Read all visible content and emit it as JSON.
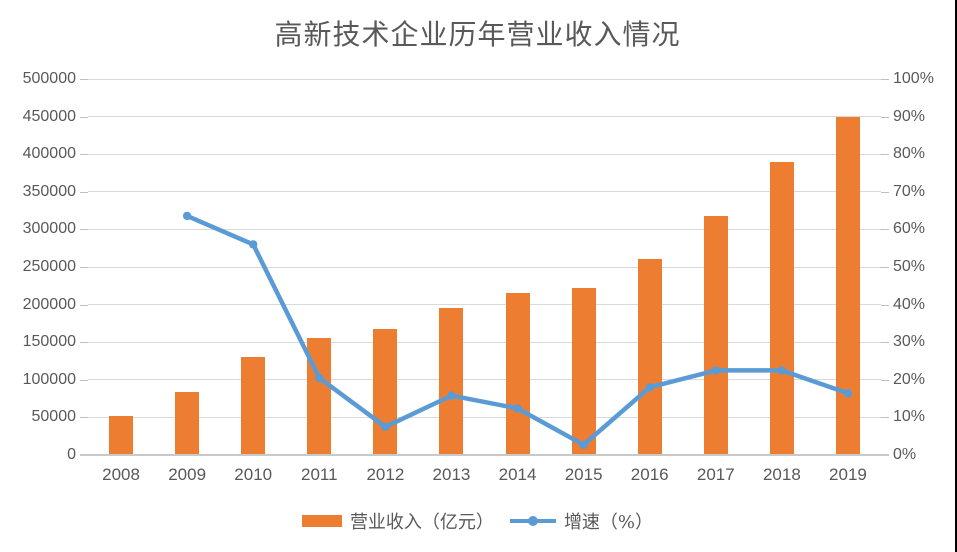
{
  "page": {
    "background": "#ffffff",
    "right_edge_line_color": "#000000"
  },
  "chart_data": {
    "type": "bar",
    "subtype": "combo-bar-line",
    "title": "高新技术企业历年营业收入情况",
    "categories": [
      "2008",
      "2009",
      "2010",
      "2011",
      "2012",
      "2013",
      "2014",
      "2015",
      "2016",
      "2017",
      "2018",
      "2019"
    ],
    "series": [
      {
        "name": "营业收入（亿元）",
        "type": "bar",
        "axis": "left",
        "color": "#ED7D31",
        "values": [
          52000,
          84000,
          130000,
          156000,
          167000,
          195000,
          216000,
          222000,
          261000,
          318000,
          389000,
          450000
        ]
      },
      {
        "name": "增速（%）",
        "type": "line",
        "axis": "right",
        "color": "#5B9BD5",
        "values": [
          null,
          63.6,
          56.0,
          20.5,
          7.5,
          15.8,
          12.4,
          2.7,
          18.0,
          22.5,
          22.5,
          16.4
        ]
      }
    ],
    "left_axis": {
      "min": 0,
      "max": 500000,
      "step": 50000,
      "tick_labels": [
        "0",
        "50000",
        "100000",
        "150000",
        "200000",
        "250000",
        "300000",
        "350000",
        "400000",
        "450000",
        "500000"
      ]
    },
    "right_axis": {
      "min": 0,
      "max": 100,
      "step": 10,
      "tick_labels": [
        "0%",
        "10%",
        "20%",
        "30%",
        "40%",
        "50%",
        "60%",
        "70%",
        "80%",
        "90%",
        "100%"
      ]
    },
    "grid": true,
    "legend_position": "bottom",
    "gridline_color": "#D9D9D9",
    "axis_line_color": "#C9C9C9",
    "tick_color": "#BFBFBF",
    "text_color": "#595959"
  },
  "legend": {
    "items": [
      {
        "label": "营业收入（亿元）",
        "swatch": "bar",
        "color": "#ED7D31"
      },
      {
        "label": "增速（%）",
        "swatch": "line",
        "color": "#5B9BD5"
      }
    ]
  }
}
